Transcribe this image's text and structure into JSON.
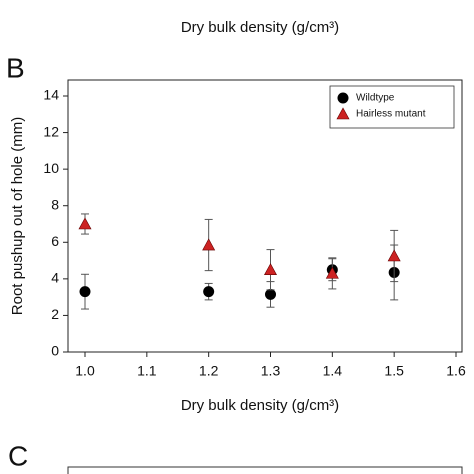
{
  "panel_a": {
    "xlabel": "Dry bulk density (g/cm³)"
  },
  "chart_data": {
    "type": "scatter",
    "panel_label": "B",
    "xlabel": "Dry bulk density (g/cm³)",
    "ylabel": "Root pushup out of hole (mm)",
    "xlim": [
      0.95,
      1.6
    ],
    "ylim": [
      0,
      14
    ],
    "xticks": [
      {
        "value": 1.0,
        "label": "1.0"
      },
      {
        "value": 1.1,
        "label": "1.1"
      },
      {
        "value": 1.2,
        "label": "1.2"
      },
      {
        "value": 1.3,
        "label": "1.3"
      },
      {
        "value": 1.4,
        "label": "1.4"
      },
      {
        "value": 1.5,
        "label": "1.5"
      },
      {
        "value": 1.6,
        "label": "1.6"
      }
    ],
    "yticks": [
      0,
      2,
      4,
      6,
      8,
      10,
      12,
      14
    ],
    "legend": "upper right",
    "series": [
      {
        "name": "Wildtype",
        "color": "#000000",
        "marker": "circle",
        "x": [
          1.0,
          1.2,
          1.3,
          1.4,
          1.5
        ],
        "values": [
          3.3,
          3.3,
          3.15,
          4.5,
          4.35
        ],
        "errors": [
          0.95,
          0.45,
          0.7,
          0.6,
          1.5
        ]
      },
      {
        "name": "Hairless mutant",
        "color": "#cc2222",
        "marker": "triangle",
        "x": [
          1.0,
          1.2,
          1.3,
          1.4,
          1.5
        ],
        "values": [
          7.0,
          5.85,
          4.5,
          4.3,
          5.25
        ],
        "errors": [
          0.55,
          1.4,
          1.1,
          0.85,
          1.4
        ]
      }
    ]
  },
  "panel_c": {
    "label": "C"
  }
}
